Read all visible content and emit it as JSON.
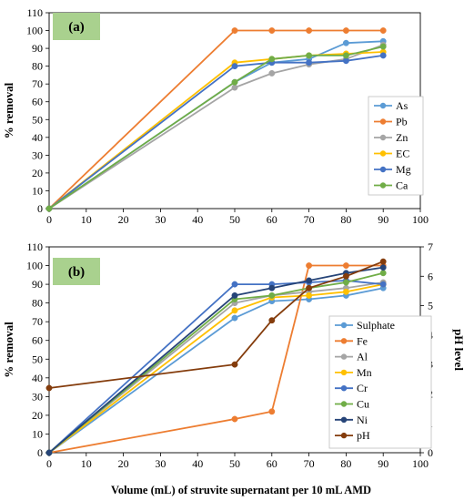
{
  "figure": {
    "xlabel": "Volume (mL) of struvite supernatant per 10 mL AMD"
  },
  "chart_data": [
    {
      "type": "line",
      "panel_label": "(a)",
      "ylabel": "% removal",
      "x_ticks": [
        0,
        10,
        20,
        30,
        40,
        50,
        60,
        70,
        80,
        90,
        100
      ],
      "y_ticks": [
        0,
        10,
        20,
        30,
        40,
        50,
        60,
        70,
        80,
        90,
        100,
        110
      ],
      "xlim": [
        0,
        100
      ],
      "ylim": [
        0,
        110
      ],
      "grid": false,
      "legend_position": "right",
      "x": [
        0,
        50,
        60,
        70,
        80,
        90
      ],
      "series": [
        {
          "name": "As",
          "color": "#5b9bd5",
          "values": [
            0,
            71,
            82,
            84,
            93,
            94
          ]
        },
        {
          "name": "Pb",
          "color": "#ed7d31",
          "values": [
            0,
            100,
            100,
            100,
            100,
            100
          ]
        },
        {
          "name": "Zn",
          "color": "#a5a5a5",
          "values": [
            0,
            68,
            76,
            81,
            84,
            92
          ]
        },
        {
          "name": "EC",
          "color": "#ffc000",
          "values": [
            0,
            82,
            84,
            86,
            87,
            88
          ]
        },
        {
          "name": "Mg",
          "color": "#4472c4",
          "values": [
            0,
            80,
            82,
            82,
            83,
            86
          ]
        },
        {
          "name": "Ca",
          "color": "#70ad47",
          "values": [
            0,
            71,
            84,
            86,
            86,
            91
          ]
        }
      ]
    },
    {
      "type": "line",
      "panel_label": "(b)",
      "ylabel": "% removal",
      "y2label": "pH level",
      "x_ticks": [
        0,
        10,
        20,
        30,
        40,
        50,
        60,
        70,
        80,
        90,
        100
      ],
      "y_ticks": [
        0,
        10,
        20,
        30,
        40,
        50,
        60,
        70,
        80,
        90,
        100,
        110
      ],
      "y2_ticks": [
        0,
        1,
        2,
        3,
        4,
        5,
        6,
        7
      ],
      "xlim": [
        0,
        100
      ],
      "ylim": [
        0,
        110
      ],
      "y2lim": [
        0,
        7
      ],
      "grid": false,
      "legend_position": "right",
      "x": [
        0,
        50,
        60,
        70,
        80,
        90
      ],
      "series": [
        {
          "name": "Sulphate",
          "color": "#5b9bd5",
          "axis": "left",
          "values": [
            0,
            72,
            81,
            82,
            84,
            88
          ]
        },
        {
          "name": "Fe",
          "color": "#ed7d31",
          "axis": "left",
          "values": [
            0,
            18,
            22,
            100,
            100,
            100
          ]
        },
        {
          "name": "Al",
          "color": "#a5a5a5",
          "axis": "left",
          "values": [
            0,
            80,
            84,
            86,
            88,
            91
          ]
        },
        {
          "name": "Mn",
          "color": "#ffc000",
          "axis": "left",
          "values": [
            0,
            76,
            83,
            84,
            86,
            90
          ]
        },
        {
          "name": "Cr",
          "color": "#4472c4",
          "axis": "left",
          "values": [
            0,
            90,
            90,
            91,
            92,
            90
          ]
        },
        {
          "name": "Cu",
          "color": "#70ad47",
          "axis": "left",
          "values": [
            0,
            82,
            84,
            88,
            91,
            96
          ]
        },
        {
          "name": "Ni",
          "color": "#264478",
          "axis": "left",
          "values": [
            0,
            84,
            88,
            92,
            96,
            99
          ]
        },
        {
          "name": "pH",
          "color": "#843c0c",
          "axis": "right",
          "values": [
            2.2,
            3.0,
            4.5,
            5.6,
            6.0,
            6.5
          ]
        }
      ]
    }
  ]
}
